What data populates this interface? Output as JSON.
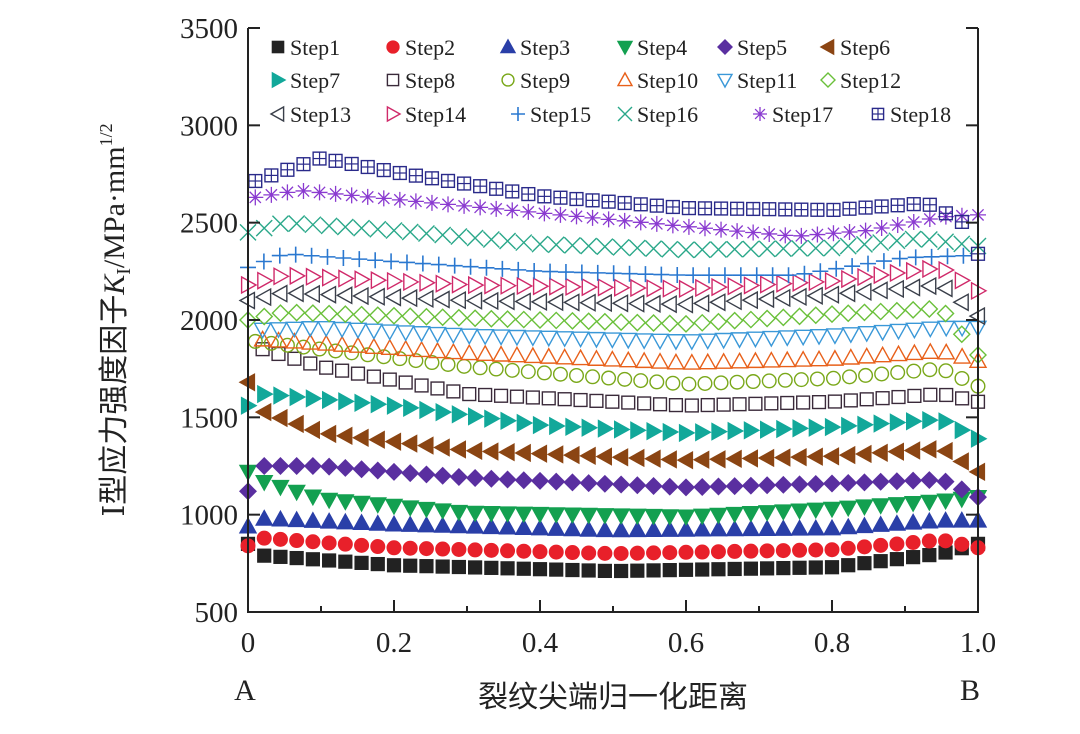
{
  "chart_data": {
    "type": "scatter",
    "title": "",
    "xlabel": "裂纹尖端归一化距离",
    "ylabel": "Ⅰ型应力强度因子K_I/MPa·mm^1/2",
    "ylabel_parts": {
      "prefix": "Ⅰ型应力强度因子",
      "var": "K",
      "sub": "I",
      "unit": "/MPa·mm",
      "sup": "1/2"
    },
    "x_end_labels": {
      "left": "A",
      "right": "B"
    },
    "xlim": [
      0,
      1.0
    ],
    "ylim": [
      500,
      3500
    ],
    "xticks": [
      "0",
      "0.2",
      "0.4",
      "0.6",
      "0.8",
      "1.0"
    ],
    "yticks": [
      "500",
      "1000",
      "1500",
      "2000",
      "2500",
      "3000",
      "3500"
    ],
    "legend_placement": "top (inside, 3 rows)",
    "series": [
      {
        "name": "Step1",
        "marker": "square-filled",
        "color": "#222222",
        "points": [
          [
            0,
            850
          ],
          [
            0.02,
            790
          ],
          [
            0.2,
            740
          ],
          [
            0.5,
            710
          ],
          [
            0.8,
            730
          ],
          [
            0.95,
            800
          ],
          [
            1.0,
            850
          ]
        ]
      },
      {
        "name": "Step2",
        "marker": "circle-filled",
        "color": "#e8202a",
        "points": [
          [
            0,
            840
          ],
          [
            0.02,
            880
          ],
          [
            0.2,
            830
          ],
          [
            0.5,
            800
          ],
          [
            0.8,
            820
          ],
          [
            0.95,
            870
          ],
          [
            1.0,
            830
          ]
        ]
      },
      {
        "name": "Step3",
        "marker": "triangle-up-filled",
        "color": "#2a3fa8",
        "points": [
          [
            0,
            940
          ],
          [
            0.02,
            980
          ],
          [
            0.2,
            950
          ],
          [
            0.5,
            920
          ],
          [
            0.8,
            930
          ],
          [
            0.95,
            970
          ],
          [
            1.0,
            970
          ]
        ]
      },
      {
        "name": "Step4",
        "marker": "triangle-down-filled",
        "color": "#13a050",
        "points": [
          [
            0,
            1220
          ],
          [
            0.02,
            1170
          ],
          [
            0.1,
            1080
          ],
          [
            0.3,
            1010
          ],
          [
            0.6,
            990
          ],
          [
            0.8,
            1030
          ],
          [
            0.95,
            1070
          ],
          [
            1.0,
            1090
          ]
        ]
      },
      {
        "name": "Step5",
        "marker": "diamond-filled",
        "color": "#5a2fa0",
        "points": [
          [
            0,
            1120
          ],
          [
            0.02,
            1250
          ],
          [
            0.1,
            1250
          ],
          [
            0.3,
            1190
          ],
          [
            0.6,
            1140
          ],
          [
            0.8,
            1160
          ],
          [
            0.95,
            1180
          ],
          [
            1.0,
            1090
          ]
        ]
      },
      {
        "name": "Step6",
        "marker": "triangle-left-filled",
        "color": "#8b4513",
        "points": [
          [
            0,
            1680
          ],
          [
            0.02,
            1530
          ],
          [
            0.1,
            1420
          ],
          [
            0.3,
            1330
          ],
          [
            0.6,
            1280
          ],
          [
            0.8,
            1300
          ],
          [
            0.95,
            1340
          ],
          [
            1.0,
            1220
          ]
        ]
      },
      {
        "name": "Step7",
        "marker": "triangle-right-filled",
        "color": "#12a89a",
        "points": [
          [
            0,
            1560
          ],
          [
            0.02,
            1620
          ],
          [
            0.2,
            1560
          ],
          [
            0.4,
            1460
          ],
          [
            0.6,
            1420
          ],
          [
            0.8,
            1450
          ],
          [
            0.95,
            1490
          ],
          [
            1.0,
            1390
          ]
        ]
      },
      {
        "name": "Step8",
        "marker": "square-open",
        "color": "#3a2a3a",
        "points": [
          [
            0.02,
            1850
          ],
          [
            0.1,
            1760
          ],
          [
            0.3,
            1620
          ],
          [
            0.6,
            1560
          ],
          [
            0.8,
            1580
          ],
          [
            0.95,
            1620
          ],
          [
            1.0,
            1580
          ]
        ]
      },
      {
        "name": "Step9",
        "marker": "circle-open",
        "color": "#7aa81a",
        "points": [
          [
            0.01,
            1890
          ],
          [
            0.1,
            1850
          ],
          [
            0.3,
            1760
          ],
          [
            0.6,
            1670
          ],
          [
            0.8,
            1700
          ],
          [
            0.95,
            1750
          ],
          [
            1.0,
            1660
          ]
        ]
      },
      {
        "name": "Step10",
        "marker": "triangle-up-open",
        "color": "#e8601a",
        "points": [
          [
            0.02,
            1900
          ],
          [
            0.1,
            1880
          ],
          [
            0.3,
            1830
          ],
          [
            0.6,
            1780
          ],
          [
            0.8,
            1800
          ],
          [
            0.95,
            1840
          ],
          [
            1.0,
            1790
          ]
        ]
      },
      {
        "name": "Step11",
        "marker": "triangle-down-open",
        "color": "#3a98d8",
        "points": [
          [
            0.02,
            1950
          ],
          [
            0.1,
            1960
          ],
          [
            0.3,
            1920
          ],
          [
            0.6,
            1890
          ],
          [
            0.8,
            1920
          ],
          [
            0.95,
            1960
          ],
          [
            1.0,
            1960
          ]
        ]
      },
      {
        "name": "Step12",
        "marker": "diamond-open",
        "color": "#6ac03a",
        "points": [
          [
            0,
            2000
          ],
          [
            0.05,
            2040
          ],
          [
            0.3,
            2010
          ],
          [
            0.6,
            1980
          ],
          [
            0.8,
            2030
          ],
          [
            0.95,
            2060
          ],
          [
            1.0,
            1820
          ]
        ]
      },
      {
        "name": "Step13",
        "marker": "triangle-left-open",
        "color": "#3a3f4a",
        "points": [
          [
            0,
            2100
          ],
          [
            0.05,
            2140
          ],
          [
            0.3,
            2100
          ],
          [
            0.6,
            2080
          ],
          [
            0.8,
            2130
          ],
          [
            0.95,
            2180
          ],
          [
            1.0,
            2020
          ]
        ]
      },
      {
        "name": "Step14",
        "marker": "triangle-right-open",
        "color": "#d02a6a",
        "points": [
          [
            0,
            2180
          ],
          [
            0.05,
            2230
          ],
          [
            0.3,
            2180
          ],
          [
            0.6,
            2160
          ],
          [
            0.8,
            2200
          ],
          [
            0.95,
            2270
          ],
          [
            1.0,
            2150
          ]
        ]
      },
      {
        "name": "Step15",
        "marker": "plus",
        "color": "#2a78d0",
        "points": [
          [
            0,
            2270
          ],
          [
            0.05,
            2340
          ],
          [
            0.2,
            2300
          ],
          [
            0.4,
            2250
          ],
          [
            0.6,
            2230
          ],
          [
            0.75,
            2230
          ],
          [
            0.9,
            2320
          ],
          [
            0.98,
            2330
          ]
        ]
      },
      {
        "name": "Step16",
        "marker": "cross",
        "color": "#2aa88a",
        "points": [
          [
            0,
            2450
          ],
          [
            0.05,
            2500
          ],
          [
            0.2,
            2460
          ],
          [
            0.4,
            2390
          ],
          [
            0.6,
            2360
          ],
          [
            0.8,
            2370
          ],
          [
            0.92,
            2420
          ],
          [
            1.0,
            2380
          ]
        ]
      },
      {
        "name": "Step17",
        "marker": "asterisk",
        "color": "#8a3ad0",
        "points": [
          [
            0.01,
            2630
          ],
          [
            0.07,
            2665
          ],
          [
            0.2,
            2620
          ],
          [
            0.4,
            2550
          ],
          [
            0.6,
            2480
          ],
          [
            0.75,
            2430
          ],
          [
            0.85,
            2460
          ],
          [
            0.95,
            2530
          ],
          [
            1.0,
            2540
          ]
        ]
      },
      {
        "name": "Step18",
        "marker": "square-grid",
        "color": "#2a2a8a",
        "points": [
          [
            0.01,
            2714
          ],
          [
            0.1,
            2832
          ],
          [
            0.2,
            2760
          ],
          [
            0.4,
            2637
          ],
          [
            0.6,
            2575
          ],
          [
            0.8,
            2565
          ],
          [
            0.93,
            2600
          ],
          [
            0.98,
            2500
          ],
          [
            1.0,
            2340
          ]
        ]
      }
    ]
  }
}
